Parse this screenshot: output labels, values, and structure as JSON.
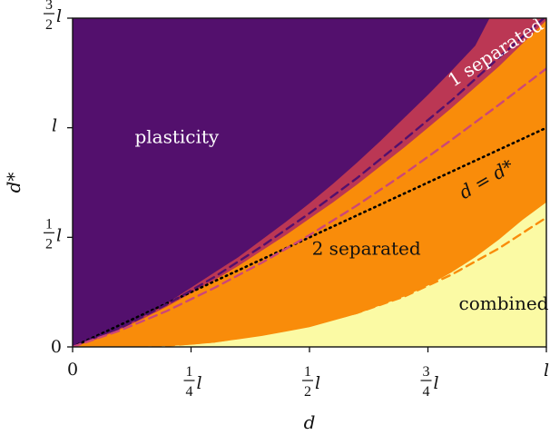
{
  "chart_data": {
    "type": "heatmap",
    "title": "",
    "xlabel": "d",
    "ylabel": "d*",
    "xlim": [
      0,
      1
    ],
    "ylim": [
      0,
      1.5
    ],
    "x_unit": "l",
    "grid": false,
    "legend": "none",
    "x_ticks": [
      {
        "value": 0,
        "label": "0",
        "num": "",
        "den": "",
        "unit": ""
      },
      {
        "value": 0.25,
        "label": "",
        "num": "1",
        "den": "4",
        "unit": "l"
      },
      {
        "value": 0.5,
        "label": "",
        "num": "1",
        "den": "2",
        "unit": "l"
      },
      {
        "value": 0.75,
        "label": "",
        "num": "3",
        "den": "4",
        "unit": "l"
      },
      {
        "value": 1,
        "label": "",
        "num": "",
        "den": "",
        "unit": "l"
      }
    ],
    "y_ticks": [
      {
        "value": 0,
        "label": "0",
        "num": "",
        "den": "",
        "unit": ""
      },
      {
        "value": 0.5,
        "label": "",
        "num": "1",
        "den": "2",
        "unit": "l"
      },
      {
        "value": 1,
        "label": "",
        "num": "",
        "den": "",
        "unit": "l"
      },
      {
        "value": 1.5,
        "label": "",
        "num": "3",
        "den": "2",
        "unit": "l"
      }
    ],
    "regions": [
      {
        "name": "plasticity",
        "label": "plasticity",
        "color": "#53106d",
        "label_at": [
          0.22,
          0.93
        ],
        "label_color": "#ffffff",
        "label_rotation": 0
      },
      {
        "name": "1-separated",
        "label": "1 separated",
        "color": "#bb3754",
        "label_at": [
          0.9,
          1.32
        ],
        "label_color": "#ffffff",
        "label_rotation": -33
      },
      {
        "name": "2-separated",
        "label": "2 separated",
        "color": "#f98c0a",
        "label_at": [
          0.62,
          0.42
        ],
        "label_color": "#111111",
        "label_rotation": 0
      },
      {
        "name": "combined",
        "label": "combined",
        "color": "#fbfaa4",
        "label_at": [
          0.91,
          0.17
        ],
        "label_color": "#111111",
        "label_rotation": 0
      }
    ],
    "boundaries": {
      "plasticity_upper": [
        [
          0,
          0
        ],
        [
          0.05,
          0.04
        ],
        [
          0.1,
          0.085
        ],
        [
          0.15,
          0.14
        ],
        [
          0.2,
          0.2
        ],
        [
          0.25,
          0.27
        ],
        [
          0.3,
          0.34
        ],
        [
          0.35,
          0.41
        ],
        [
          0.4,
          0.49
        ],
        [
          0.45,
          0.57
        ],
        [
          0.5,
          0.655
        ],
        [
          0.55,
          0.745
        ],
        [
          0.6,
          0.84
        ],
        [
          0.65,
          0.94
        ],
        [
          0.7,
          1.045
        ],
        [
          0.75,
          1.15
        ],
        [
          0.8,
          1.26
        ],
        [
          0.85,
          1.375
        ],
        [
          0.88,
          1.5
        ]
      ],
      "one_separated_upper": [
        [
          0,
          0
        ],
        [
          0.05,
          0.035
        ],
        [
          0.1,
          0.08
        ],
        [
          0.15,
          0.13
        ],
        [
          0.2,
          0.185
        ],
        [
          0.25,
          0.245
        ],
        [
          0.3,
          0.305
        ],
        [
          0.35,
          0.37
        ],
        [
          0.4,
          0.44
        ],
        [
          0.45,
          0.51
        ],
        [
          0.5,
          0.585
        ],
        [
          0.55,
          0.66
        ],
        [
          0.6,
          0.74
        ],
        [
          0.65,
          0.825
        ],
        [
          0.7,
          0.91
        ],
        [
          0.75,
          1.0
        ],
        [
          0.8,
          1.09
        ],
        [
          0.85,
          1.185
        ],
        [
          0.9,
          1.28
        ],
        [
          0.95,
          1.385
        ],
        [
          1,
          1.49
        ]
      ],
      "two_separated_upper": [
        [
          0,
          0
        ],
        [
          0.05,
          0.032
        ],
        [
          0.1,
          0.07
        ],
        [
          0.15,
          0.11
        ],
        [
          0.2,
          0.155
        ],
        [
          0.25,
          0.2
        ],
        [
          0.3,
          0.25
        ],
        [
          0.35,
          0.3
        ],
        [
          0.4,
          0.355
        ],
        [
          0.45,
          0.41
        ],
        [
          0.5,
          0.47
        ],
        [
          0.55,
          0.53
        ],
        [
          0.6,
          0.6
        ],
        [
          0.65,
          0.67
        ],
        [
          0.7,
          0.74
        ],
        [
          0.75,
          0.82
        ],
        [
          0.8,
          0.9
        ],
        [
          0.85,
          0.98
        ],
        [
          0.9,
          1.07
        ],
        [
          0.95,
          1.16
        ],
        [
          1,
          1.25
        ]
      ],
      "combined_upper": [
        [
          0,
          0
        ],
        [
          0.1,
          0
        ],
        [
          0.2,
          0.004
        ],
        [
          0.25,
          0.01
        ],
        [
          0.3,
          0.02
        ],
        [
          0.35,
          0.035
        ],
        [
          0.4,
          0.05
        ],
        [
          0.45,
          0.07
        ],
        [
          0.5,
          0.09
        ],
        [
          0.55,
          0.12
        ],
        [
          0.6,
          0.15
        ],
        [
          0.65,
          0.19
        ],
        [
          0.7,
          0.23
        ],
        [
          0.75,
          0.28
        ],
        [
          0.8,
          0.34
        ],
        [
          0.85,
          0.41
        ],
        [
          0.9,
          0.49
        ],
        [
          0.95,
          0.58
        ],
        [
          1,
          0.66
        ]
      ]
    },
    "lines": [
      {
        "name": "d-equals-dstar",
        "style": "dotted",
        "color": "#000000",
        "points": [
          [
            0,
            0
          ],
          [
            1,
            1
          ]
        ],
        "label": "d = d*",
        "label_at": [
          0.88,
          0.74
        ],
        "label_rotation": -30
      },
      {
        "name": "dashed-upper-plasticity",
        "style": "dashed",
        "color": "#53106d",
        "points": [
          [
            0,
            0
          ],
          [
            0.1,
            0.085
          ],
          [
            0.2,
            0.195
          ],
          [
            0.3,
            0.32
          ],
          [
            0.4,
            0.46
          ],
          [
            0.5,
            0.61
          ],
          [
            0.6,
            0.77
          ],
          [
            0.7,
            0.945
          ],
          [
            0.8,
            1.125
          ],
          [
            0.9,
            1.32
          ],
          [
            1,
            1.51
          ]
        ]
      },
      {
        "name": "dashed-separated",
        "style": "dashed",
        "color": "#cc4778",
        "points": [
          [
            0,
            0
          ],
          [
            0.1,
            0.075
          ],
          [
            0.2,
            0.165
          ],
          [
            0.3,
            0.27
          ],
          [
            0.4,
            0.385
          ],
          [
            0.5,
            0.51
          ],
          [
            0.6,
            0.645
          ],
          [
            0.7,
            0.79
          ],
          [
            0.8,
            0.945
          ],
          [
            0.9,
            1.105
          ],
          [
            1,
            1.27
          ]
        ]
      },
      {
        "name": "dashed-combined",
        "style": "dashed",
        "color": "#f98c0a",
        "points": [
          [
            0.14,
            0
          ],
          [
            0.2,
            0.006
          ],
          [
            0.3,
            0.025
          ],
          [
            0.4,
            0.058
          ],
          [
            0.5,
            0.1
          ],
          [
            0.6,
            0.155
          ],
          [
            0.7,
            0.23
          ],
          [
            0.8,
            0.33
          ],
          [
            0.9,
            0.45
          ],
          [
            1,
            0.59
          ]
        ]
      }
    ]
  }
}
